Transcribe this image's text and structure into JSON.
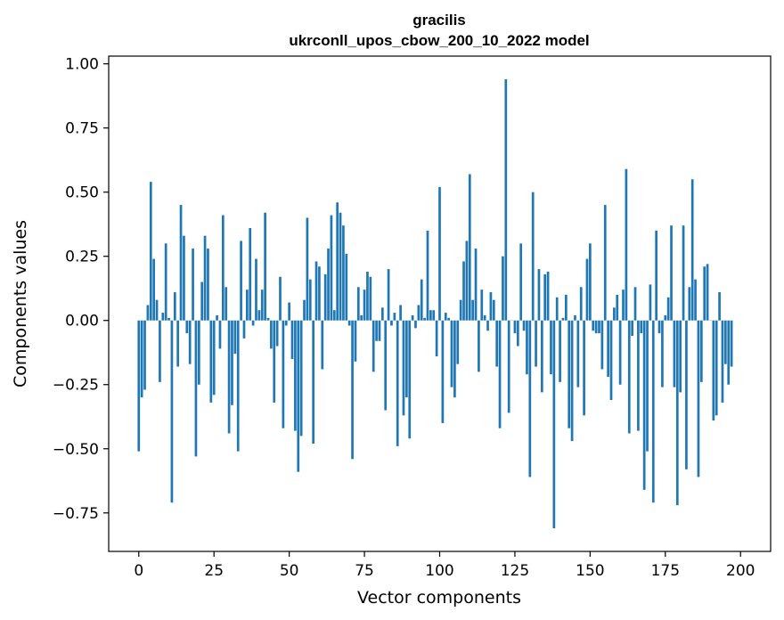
{
  "chart_data": {
    "type": "bar",
    "title": "gracilis",
    "subtitle": "ukrconll_upos_cbow_200_10_2022 model",
    "xlabel": "Vector components",
    "ylabel": "Components values",
    "xlim": [
      -10,
      210
    ],
    "ylim": [
      -0.9,
      1.03
    ],
    "xticks": [
      0,
      25,
      50,
      75,
      100,
      125,
      150,
      175,
      200
    ],
    "yticks": [
      -0.75,
      -0.5,
      -0.25,
      0.0,
      0.25,
      0.5,
      0.75,
      1.0
    ],
    "xtick_labels": [
      "0",
      "25",
      "50",
      "75",
      "100",
      "125",
      "150",
      "175",
      "200"
    ],
    "ytick_labels": [
      "−0.75",
      "−0.50",
      "−0.25",
      "0.00",
      "0.25",
      "0.50",
      "0.75",
      "1.00"
    ],
    "grid": false,
    "bar_color": "#1f77b4",
    "values": [
      -0.51,
      -0.3,
      -0.27,
      0.06,
      0.54,
      0.24,
      0.08,
      -0.24,
      0.03,
      0.3,
      0.01,
      -0.71,
      0.11,
      -0.18,
      0.45,
      0.33,
      -0.05,
      -0.17,
      0.28,
      -0.53,
      -0.25,
      0.15,
      0.33,
      0.28,
      -0.32,
      -0.29,
      0.02,
      -0.11,
      0.41,
      0.13,
      -0.44,
      -0.33,
      -0.13,
      -0.51,
      0.31,
      -0.07,
      0.12,
      0.36,
      -0.02,
      0.24,
      0.04,
      0.12,
      0.42,
      0.01,
      -0.11,
      -0.32,
      -0.1,
      0.17,
      -0.42,
      -0.02,
      0.07,
      -0.15,
      -0.43,
      -0.59,
      -0.45,
      0.08,
      0.4,
      0.16,
      -0.48,
      0.23,
      0.21,
      -0.19,
      0.18,
      0.28,
      0.41,
      0.04,
      0.46,
      0.42,
      0.37,
      0.26,
      -0.02,
      -0.54,
      -0.16,
      0.13,
      0.02,
      0.12,
      0.19,
      0.17,
      -0.2,
      -0.08,
      -0.08,
      0.05,
      -0.35,
      0.2,
      -0.02,
      0.03,
      -0.49,
      0.06,
      -0.37,
      -0.3,
      -0.46,
      0.02,
      -0.03,
      0.06,
      0.16,
      0.01,
      0.35,
      0.04,
      0.04,
      -0.14,
      0.52,
      -0.4,
      0.03,
      0.01,
      -0.26,
      -0.3,
      -0.17,
      0.08,
      0.23,
      0.31,
      0.57,
      0.08,
      0.28,
      -0.2,
      0.12,
      0.02,
      -0.04,
      0.11,
      0.08,
      -0.18,
      -0.42,
      0.25,
      0.94,
      -0.36,
      0.0,
      -0.05,
      -0.1,
      0.3,
      -0.04,
      -0.21,
      -0.61,
      0.5,
      -0.18,
      0.2,
      -0.28,
      0.18,
      0.19,
      -0.21,
      -0.81,
      0.09,
      -0.24,
      0.01,
      0.1,
      -0.42,
      -0.47,
      0.02,
      -0.26,
      0.13,
      -0.37,
      0.24,
      0.3,
      -0.04,
      -0.05,
      -0.05,
      -0.19,
      0.45,
      -0.22,
      -0.31,
      0.05,
      0.1,
      -0.25,
      0.12,
      0.59,
      -0.44,
      -0.06,
      0.13,
      -0.43,
      -0.05,
      -0.66,
      -0.51,
      0.14,
      -0.71,
      0.35,
      -0.05,
      -0.26,
      0.02,
      0.09,
      0.37,
      -0.26,
      -0.72,
      -0.28,
      0.37,
      -0.58,
      0.13,
      0.55,
      0.16,
      -0.61,
      -0.24,
      0.21,
      0.22,
      0.0,
      -0.39,
      -0.37,
      0.11,
      -0.32,
      -0.17,
      -0.25,
      -0.18
    ]
  }
}
